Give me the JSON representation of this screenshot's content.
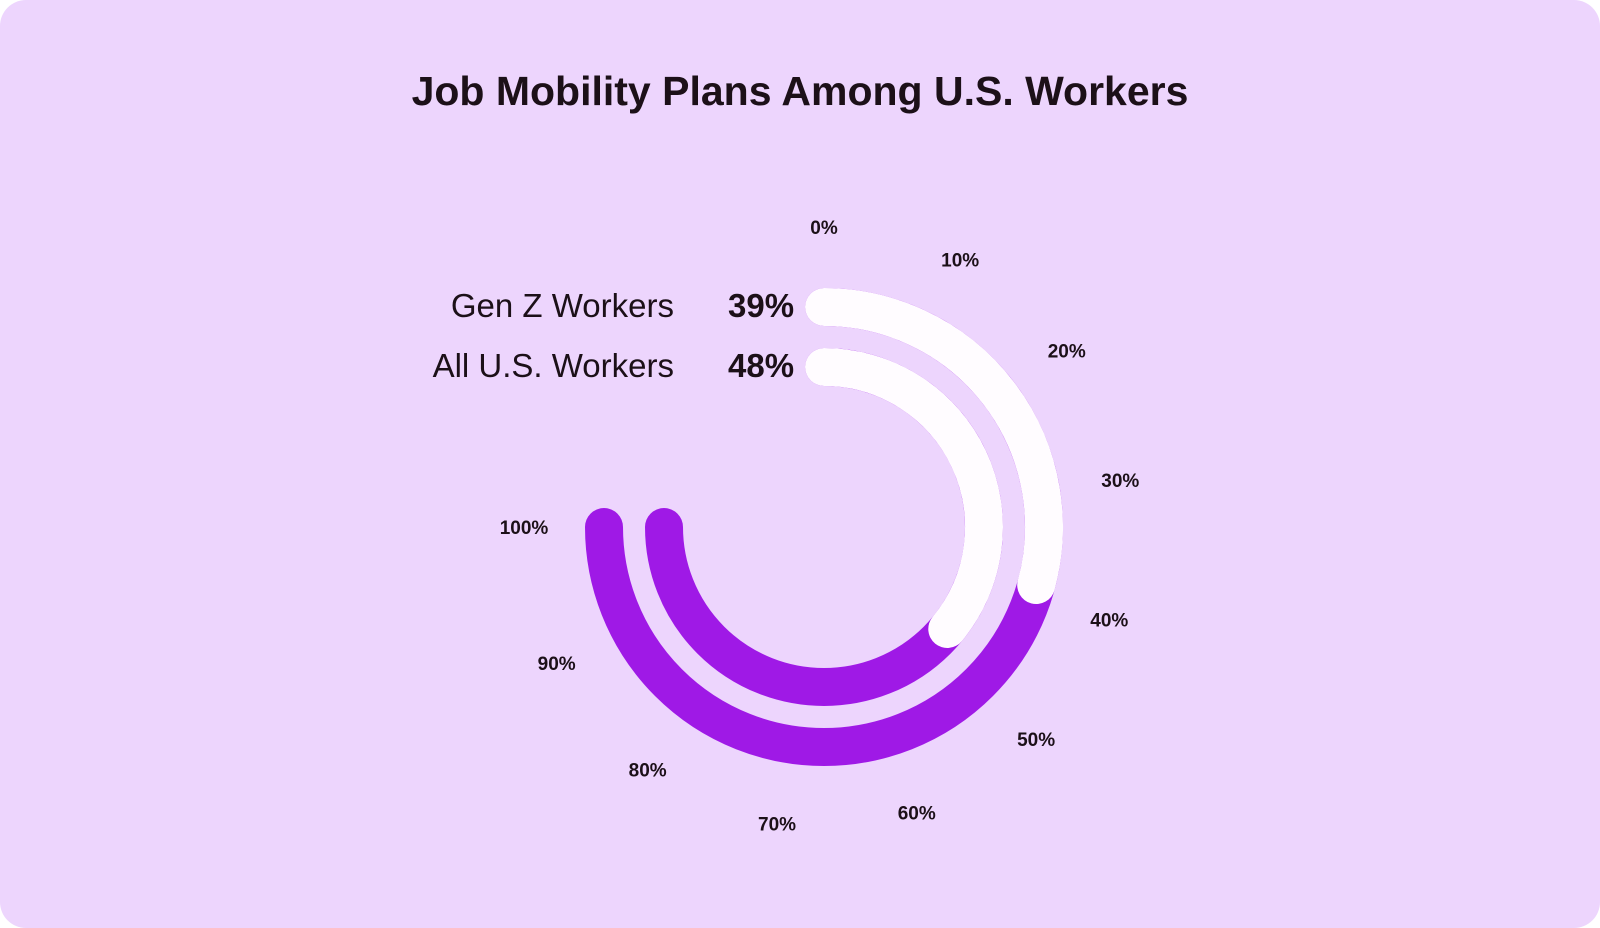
{
  "title": "Job Mobility Plans Among U.S. Workers",
  "legend": [
    {
      "label": "Gen Z Workers",
      "value": "39%"
    },
    {
      "label": "All U.S. Workers",
      "value": "48%"
    }
  ],
  "colors": {
    "background": "#edd5fd",
    "track": "#9f19e6",
    "fill": "#fffcff",
    "text": "#1c1018"
  },
  "chart_data": {
    "type": "radial_bar",
    "title": "Job Mobility Plans Among U.S. Workers",
    "categories": [
      "Gen Z Workers",
      "All U.S. Workers"
    ],
    "values": [
      39,
      48
    ],
    "unit": "%",
    "range": [
      0,
      100
    ],
    "arc_span_degrees": 270,
    "start_angle": "top (12 o'clock), clockwise",
    "tick_labels": [
      "0%",
      "10%",
      "20%",
      "30%",
      "40%",
      "50%",
      "60%",
      "70%",
      "80%",
      "90%",
      "100%"
    ],
    "series_order_outer_to_inner": [
      "Gen Z Workers",
      "All U.S. Workers"
    ],
    "legend_position": "left of chart, top"
  }
}
